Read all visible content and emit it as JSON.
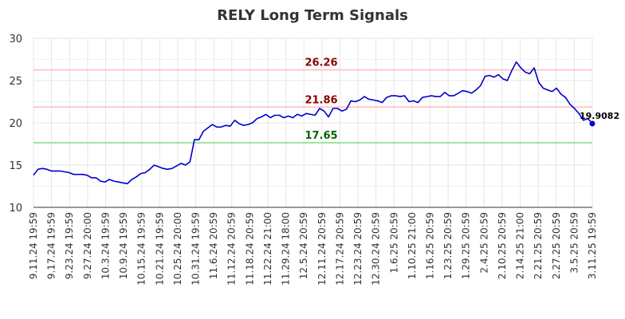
{
  "chart_data": {
    "type": "line",
    "title": "RELY Long Term Signals",
    "xlabel": "",
    "ylabel": "",
    "ylim": [
      10,
      30
    ],
    "yticks": [
      10,
      15,
      20,
      25,
      30
    ],
    "grid": true,
    "x_tick_labels": [
      "9.11.24 19:59",
      "9.17.24 19:59",
      "9.23.24 19:59",
      "9.27.24 20:00",
      "10.3.24 19:59",
      "10.9.24 19:59",
      "10.15.24 19:59",
      "10.21.24 19:59",
      "10.25.24 20:00",
      "10.31.24 19:59",
      "11.6.24 20:59",
      "11.12.24 20:59",
      "11.18.24 20:59",
      "11.22.24 21:00",
      "11.29.24 18:00",
      "12.5.24 20:59",
      "12.11.24 20:59",
      "12.17.24 20:59",
      "12.23.24 20:59",
      "12.30.24 20:59",
      "1.6.25 20:59",
      "1.10.25 21:00",
      "1.16.25 20:59",
      "1.23.25 20:59",
      "1.29.25 20:59",
      "2.4.25 20:59",
      "2.10.25 20:59",
      "2.14.25 21:00",
      "2.21.25 20:59",
      "2.27.25 20:59",
      "3.5.25 20:59",
      "3.11.25 19:59"
    ],
    "series": [
      {
        "color": "#0000cc",
        "values": [
          13.8,
          14.5,
          14.6,
          14.5,
          14.3,
          14.3,
          14.3,
          14.2,
          14.1,
          13.9,
          13.9,
          13.9,
          13.8,
          13.5,
          13.5,
          13.1,
          13.0,
          13.3,
          13.1,
          13.0,
          12.9,
          12.8,
          13.3,
          13.6,
          14.0,
          14.1,
          14.5,
          15.0,
          14.8,
          14.6,
          14.5,
          14.6,
          14.9,
          15.2,
          15.0,
          15.4,
          18.0,
          18.0,
          19.0,
          19.4,
          19.8,
          19.5,
          19.5,
          19.7,
          19.6,
          20.3,
          19.9,
          19.7,
          19.8,
          20.0,
          20.5,
          20.7,
          21.0,
          20.6,
          20.9,
          20.9,
          20.6,
          20.8,
          20.6,
          21.0,
          20.8,
          21.1,
          21.0,
          20.9,
          21.7,
          21.4,
          20.7,
          21.7,
          21.7,
          21.4,
          21.6,
          22.6,
          22.5,
          22.7,
          23.1,
          22.8,
          22.7,
          22.6,
          22.4,
          23.0,
          23.2,
          23.2,
          23.1,
          23.2,
          22.5,
          22.6,
          22.4,
          23.0,
          23.1,
          23.2,
          23.1,
          23.1,
          23.6,
          23.2,
          23.2,
          23.5,
          23.8,
          23.7,
          23.5,
          23.9,
          24.4,
          25.5,
          25.6,
          25.4,
          25.7,
          25.2,
          25.0,
          26.2,
          27.2,
          26.5,
          26.0,
          25.8,
          26.5,
          24.8,
          24.1,
          23.9,
          23.7,
          24.1,
          23.4,
          23.0,
          22.2,
          21.7,
          21.1,
          20.3,
          20.5,
          19.9082
        ]
      }
    ],
    "reference_lines": [
      {
        "value": 26.26,
        "label": "26.26",
        "line_color": "#ffbbbb",
        "label_color": "#8b0000"
      },
      {
        "value": 21.86,
        "label": "21.86",
        "line_color": "#ffbbbb",
        "label_color": "#8b0000"
      },
      {
        "value": 17.65,
        "label": "17.65",
        "line_color": "#88dd88",
        "label_color": "#006400"
      }
    ],
    "last_value_label": "19.9082",
    "grid_color": "#e6e6e6"
  }
}
